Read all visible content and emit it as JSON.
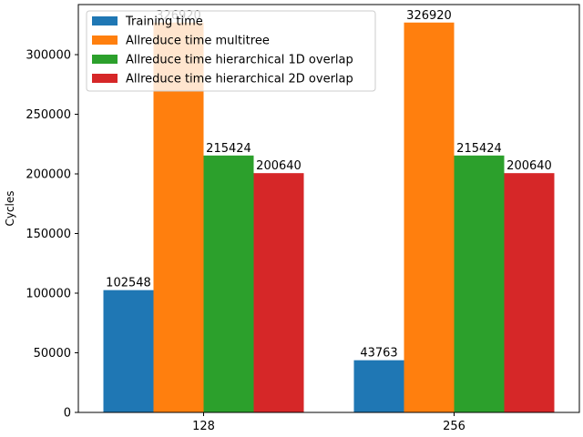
{
  "chart_data": {
    "type": "bar",
    "title": "",
    "xlabel": "",
    "ylabel": "Cycles",
    "ylim": [
      0,
      342000
    ],
    "yticks": [
      0,
      50000,
      100000,
      150000,
      200000,
      250000,
      300000
    ],
    "categories": [
      "128",
      "256"
    ],
    "series": [
      {
        "name": "Training time",
        "color": "#1f77b4",
        "values": [
          102548,
          43763
        ]
      },
      {
        "name": "Allreduce time multitree",
        "color": "#ff7f0e",
        "values": [
          326920,
          326920
        ]
      },
      {
        "name": "Allreduce time hierarchical 1D overlap",
        "color": "#2ca02c",
        "values": [
          215424,
          215424
        ]
      },
      {
        "name": "Allreduce time hierarchical 2D overlap",
        "color": "#d62728",
        "values": [
          200640,
          200640
        ]
      }
    ],
    "legend": "top-left",
    "grid": false
  }
}
